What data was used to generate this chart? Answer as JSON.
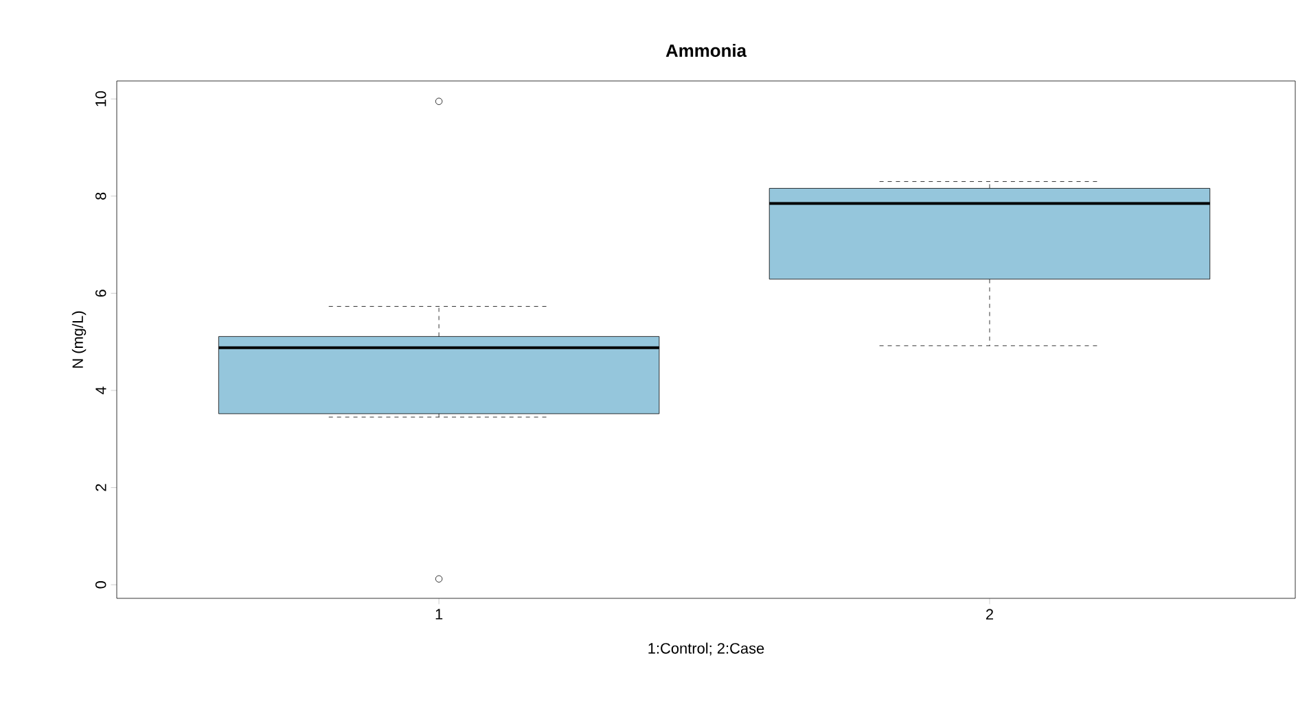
{
  "chart_data": {
    "type": "box",
    "title": "Ammonia",
    "xlabel": "1:Control; 2:Case",
    "ylabel": "N (mg/L)",
    "categories": [
      "1",
      "2"
    ],
    "boxes": [
      {
        "low": 3.45,
        "q1": 3.52,
        "median": 4.88,
        "q3": 5.11,
        "high": 5.73,
        "outliers": [
          9.95,
          0.12
        ]
      },
      {
        "low": 4.92,
        "q1": 6.29,
        "median": 7.85,
        "q3": 8.16,
        "high": 8.3
      }
    ],
    "color": "#95c6dc",
    "ylim": [
      -0.28,
      10.37
    ],
    "yticks": [
      0,
      2,
      4,
      6,
      8,
      10
    ],
    "grid": false
  }
}
